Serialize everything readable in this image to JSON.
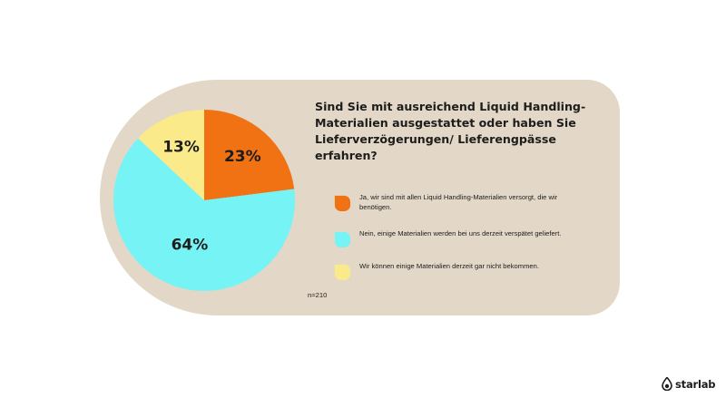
{
  "chart_data": {
    "type": "pie",
    "title": "Sind Sie mit ausreichend Liquid Handling-\nMaterialien ausgestattet oder haben Sie\nLieferverzögerungen/ Lieferengpässe erfahren?",
    "slices": [
      {
        "label": "Ja, wir sind mit allen Liquid Handling-Materialien versorgt, die wir benötigen.",
        "value": 23,
        "display": "23%",
        "color": "#f07212"
      },
      {
        "label": "Nein, einige Materialien werden bei uns derzeit verspätet geliefert.",
        "value": 64,
        "display": "64%",
        "color": "#75f3f5"
      },
      {
        "label": "Wir können einige Materialien derzeit gar nicht bekommen.",
        "value": 13,
        "display": "13%",
        "color": "#faea8a"
      }
    ],
    "sample_size": "n=210",
    "legend_position": "right"
  },
  "brand": {
    "name": "starlab"
  }
}
